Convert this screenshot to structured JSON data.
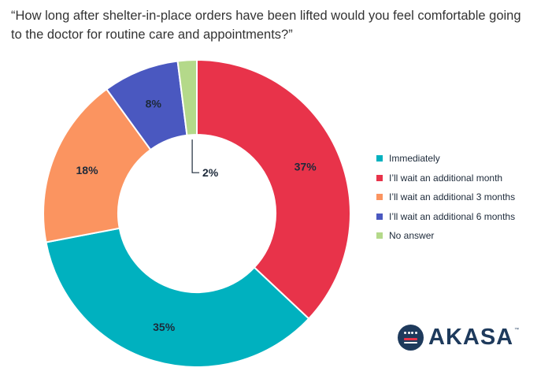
{
  "chart_data": {
    "type": "pie",
    "title": "“How long after shelter-in-place orders have been lifted would you feel comfortable going to the doctor for routine care and appointments?”",
    "donut": true,
    "start": "top",
    "direction": "clockwise",
    "slice_order": [
      "I’ll wait an additional month",
      "Immediately",
      "I’ll wait an additional 3 months",
      "I’ll wait an additional 6 months",
      "No answer"
    ],
    "slices": [
      {
        "label": "I’ll wait an additional month",
        "value": 37,
        "text": "37%",
        "color": "#e8334a"
      },
      {
        "label": "Immediately",
        "value": 35,
        "text": "35%",
        "color": "#00b1bf"
      },
      {
        "label": "I’ll wait an additional 3 months",
        "value": 18,
        "text": "18%",
        "color": "#fb9460"
      },
      {
        "label": "I’ll wait an additional 6 months",
        "value": 8,
        "text": "8%",
        "color": "#4a58c0"
      },
      {
        "label": "No answer",
        "value": 2,
        "text": "2%",
        "color": "#b4d98a"
      }
    ],
    "legend": {
      "placement": "right",
      "entries": [
        {
          "label": "Immediately",
          "color": "#00b1bf"
        },
        {
          "label": "I’ll wait an additional month",
          "color": "#e8334a"
        },
        {
          "label": "I’ll wait an additional 3 months",
          "color": "#fb9460"
        },
        {
          "label": "I’ll wait an additional 6 months",
          "color": "#4a58c0"
        },
        {
          "label": "No answer",
          "color": "#b4d98a"
        }
      ]
    }
  },
  "logo": {
    "text": "AKASA",
    "tm": "™"
  }
}
